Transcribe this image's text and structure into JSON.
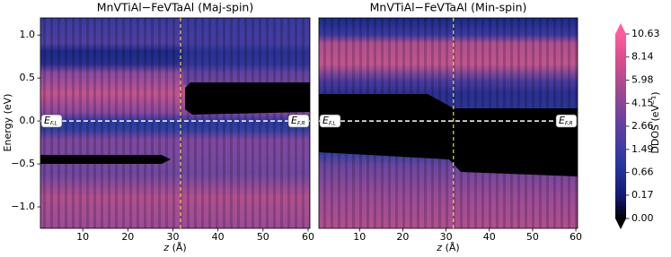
{
  "chart_data": [
    {
      "type": "heatmap",
      "title": "MnVTiAl−FeVTaAl (Maj-spin)",
      "xlabel": "z",
      "xlabel_unit": "(Å)",
      "ylabel": "Energy (eV)",
      "xlim": [
        0.6,
        60.4
      ],
      "ylim": [
        -1.25,
        1.2
      ],
      "xticks": [
        10,
        20,
        30,
        40,
        50,
        60
      ],
      "yticks": [
        {
          "value": -1.0,
          "label": "−1.0"
        },
        {
          "value": -0.5,
          "label": "−0.5"
        },
        {
          "value": 0.0,
          "label": "0.0"
        },
        {
          "value": 0.5,
          "label": "0.5"
        },
        {
          "value": 1.0,
          "label": "1.0"
        }
      ],
      "fermi_energy": 0.0,
      "interface_z": 31.7,
      "annotations": [
        {
          "text": "E",
          "sub": "F,L"
        },
        {
          "text": "E",
          "sub": "F,R"
        }
      ]
    },
    {
      "type": "heatmap",
      "title": "MnVTiAl−FeVTaAl (Min-spin)",
      "xlabel": "z",
      "xlabel_unit": "(Å)",
      "xlim": [
        0.6,
        60.4
      ],
      "ylim": [
        -1.25,
        1.2
      ],
      "xticks": [
        10,
        20,
        30,
        40,
        50,
        60
      ],
      "fermi_energy": 0.0,
      "interface_z": 31.7,
      "annotations": [
        {
          "text": "E",
          "sub": "F,L"
        },
        {
          "text": "E",
          "sub": "F,R"
        }
      ]
    }
  ],
  "colorbar": {
    "label": "DDOS (eV⁻¹)",
    "scale": "sqrt",
    "clim": [
      0,
      10.63
    ],
    "ticks": [
      {
        "value": 0,
        "label": "0.00"
      },
      0.17,
      0.66,
      1.49,
      2.66,
      4.15,
      5.98,
      8.14,
      10.63
    ]
  }
}
